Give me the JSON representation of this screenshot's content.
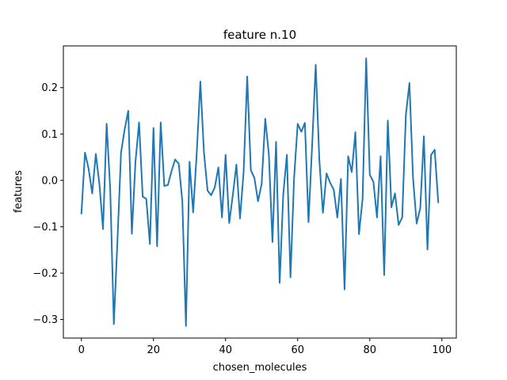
{
  "chart_data": {
    "type": "line",
    "title": "feature n.10",
    "xlabel": "chosen_molecules",
    "ylabel": "features",
    "xlim": [
      -5,
      104
    ],
    "ylim": [
      -0.34,
      0.29
    ],
    "x_ticks": [
      0,
      20,
      40,
      60,
      80,
      100
    ],
    "y_ticks": [
      -0.3,
      -0.2,
      -0.1,
      0.0,
      0.1,
      0.2
    ],
    "x_tick_labels": [
      "0",
      "20",
      "40",
      "60",
      "80",
      "100"
    ],
    "y_tick_labels": [
      "−0.3",
      "−0.2",
      "−0.1",
      "0.0",
      "0.1",
      "0.2"
    ],
    "grid": false,
    "series": [
      {
        "color": "#1f77b4",
        "x": [
          0,
          1,
          2,
          3,
          4,
          5,
          6,
          7,
          8,
          9,
          10,
          11,
          12,
          13,
          14,
          15,
          16,
          17,
          18,
          19,
          20,
          21,
          22,
          23,
          24,
          25,
          26,
          27,
          28,
          29,
          30,
          31,
          32,
          33,
          34,
          35,
          36,
          37,
          38,
          39,
          40,
          41,
          42,
          43,
          44,
          45,
          46,
          47,
          48,
          49,
          50,
          51,
          52,
          53,
          54,
          55,
          56,
          57,
          58,
          59,
          60,
          61,
          62,
          63,
          64,
          65,
          66,
          67,
          68,
          69,
          70,
          71,
          72,
          73,
          74,
          75,
          76,
          77,
          78,
          79,
          80,
          81,
          82,
          83,
          84,
          85,
          86,
          87,
          88,
          89,
          90,
          91,
          92,
          93,
          94,
          95,
          96,
          97,
          98,
          99
        ],
        "values": [
          -0.072,
          0.06,
          0.025,
          -0.028,
          0.057,
          -0.008,
          -0.105,
          0.122,
          -0.02,
          -0.31,
          -0.13,
          0.06,
          0.11,
          0.15,
          -0.115,
          0.04,
          0.125,
          -0.035,
          -0.04,
          -0.137,
          0.113,
          -0.142,
          0.125,
          -0.012,
          -0.01,
          0.02,
          0.045,
          0.036,
          -0.045,
          -0.314,
          0.04,
          -0.069,
          0.06,
          0.213,
          0.06,
          -0.022,
          -0.032,
          -0.015,
          0.028,
          -0.08,
          0.055,
          -0.092,
          -0.032,
          0.034,
          -0.082,
          0.018,
          0.224,
          0.022,
          0.005,
          -0.045,
          -0.008,
          0.133,
          0.056,
          -0.133,
          0.083,
          -0.221,
          -0.03,
          0.055,
          -0.209,
          0.005,
          0.122,
          0.105,
          0.124,
          -0.09,
          0.075,
          0.249,
          0.045,
          -0.07,
          0.015,
          -0.005,
          -0.02,
          -0.08,
          0.003,
          -0.235,
          0.052,
          0.018,
          0.104,
          -0.116,
          -0.04,
          0.263,
          0.012,
          -0.003,
          -0.08,
          0.052,
          -0.204,
          0.129,
          -0.058,
          -0.028,
          -0.096,
          -0.08,
          0.14,
          0.21,
          0.005,
          -0.093,
          -0.06,
          0.095,
          -0.149,
          0.055,
          0.066,
          -0.048
        ]
      }
    ]
  }
}
